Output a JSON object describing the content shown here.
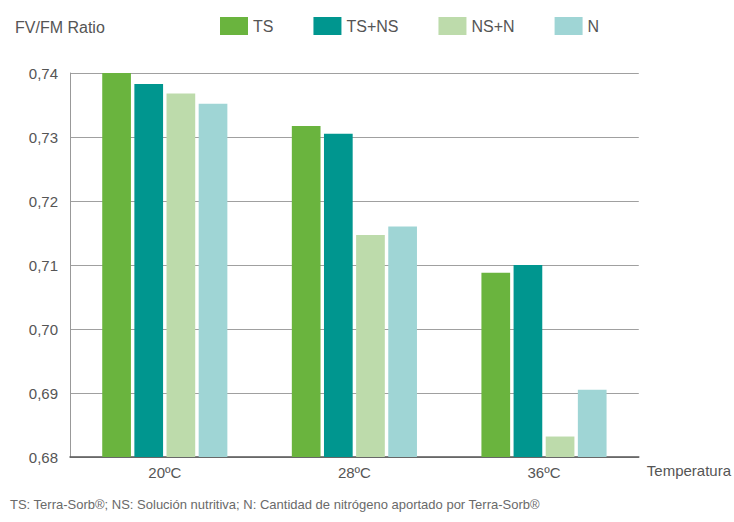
{
  "chart_data": {
    "type": "bar",
    "y_label": "FV/FM Ratio",
    "x_label": "Temperatura",
    "footnote": "TS: Terra-Sorb®; NS: Solución nutritiva; N: Cantidad de nitrógeno aportado por Terra-Sorb®",
    "categories": [
      "20ºC",
      "28ºC",
      "36ºC"
    ],
    "series": [
      {
        "name": "TS",
        "color": "#6ab43e",
        "values": [
          0.74,
          0.7317,
          0.7088
        ]
      },
      {
        "name": "TS+NS",
        "color": "#00968f",
        "values": [
          0.7383,
          0.7305,
          0.71
        ]
      },
      {
        "name": "NS+N",
        "color": "#bddbab",
        "values": [
          0.7368,
          0.7147,
          0.6832
        ]
      },
      {
        "name": "N",
        "color": "#9fd5d5",
        "values": [
          0.7352,
          0.716,
          0.6905
        ]
      }
    ],
    "ylim": [
      0.68,
      0.74
    ],
    "yticks": [
      {
        "value": 0.68,
        "label": "0,68"
      },
      {
        "value": 0.69,
        "label": "0,69"
      },
      {
        "value": 0.7,
        "label": "0,70"
      },
      {
        "value": 0.71,
        "label": "0,71"
      },
      {
        "value": 0.72,
        "label": "0,72"
      },
      {
        "value": 0.73,
        "label": "0,73"
      },
      {
        "value": 0.74,
        "label": "0,74"
      }
    ],
    "grid": true,
    "legend": "top"
  }
}
